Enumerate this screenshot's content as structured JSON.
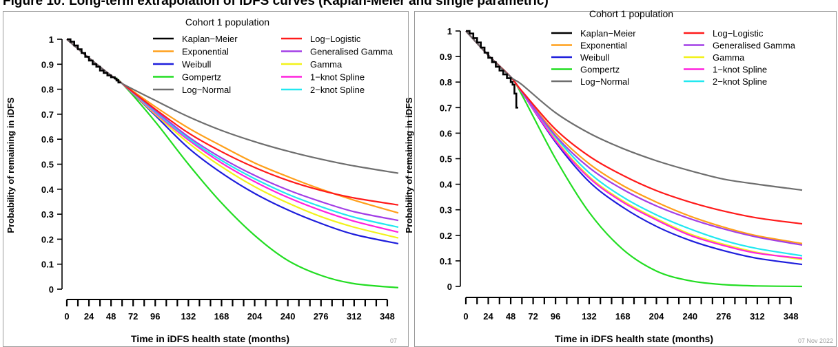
{
  "header": {
    "title": "Figure 10: Long-term extrapolation of iDFS curves (Kaplan-Meier and single parametric)"
  },
  "footer": {
    "date_stamp": "07 Nov 2022",
    "left_mark": "07"
  },
  "chart_data": [
    {
      "type": "line",
      "title": "Cohort 1 population",
      "xlabel": "Time in iDFS health state (months)",
      "ylabel": "Probability of remaining in iDFS",
      "xlim": [
        0,
        360
      ],
      "ylim": [
        0,
        1
      ],
      "x_ticks": [
        0,
        24,
        48,
        72,
        96,
        132,
        168,
        204,
        240,
        276,
        312,
        348
      ],
      "y_ticks": [
        0,
        0.1,
        0.2,
        0.3,
        0.4,
        0.5,
        0.6,
        0.7,
        0.8,
        0.9,
        1
      ],
      "legend_placement": "top",
      "kaplan_meier": {
        "name": "Kaplan−Meier",
        "color": "#000000",
        "x": [
          0,
          4,
          8,
          12,
          16,
          20,
          24,
          28,
          32,
          36,
          40,
          44,
          48,
          52,
          54,
          56,
          56,
          58
        ],
        "y": [
          1.0,
          0.99,
          0.975,
          0.96,
          0.945,
          0.93,
          0.915,
          0.9,
          0.89,
          0.875,
          0.865,
          0.855,
          0.848,
          0.843,
          0.835,
          0.84,
          0.827,
          0.825
        ]
      },
      "series": [
        {
          "name": "Exponential",
          "color": "#ff9f1a",
          "x": [
            0,
            24,
            48,
            60,
            96,
            132,
            168,
            204,
            240,
            276,
            312,
            360
          ],
          "y": [
            1.0,
            0.925,
            0.855,
            0.823,
            0.73,
            0.645,
            0.573,
            0.505,
            0.45,
            0.4,
            0.356,
            0.305
          ]
        },
        {
          "name": "Weibull",
          "color": "#1e1edc",
          "x": [
            0,
            24,
            48,
            60,
            96,
            132,
            168,
            204,
            240,
            276,
            312,
            360
          ],
          "y": [
            1.0,
            0.925,
            0.855,
            0.823,
            0.695,
            0.565,
            0.465,
            0.383,
            0.317,
            0.263,
            0.219,
            0.182
          ]
        },
        {
          "name": "Gompertz",
          "color": "#22dd22",
          "x": [
            0,
            24,
            48,
            60,
            96,
            132,
            168,
            204,
            240,
            276,
            312,
            360
          ],
          "y": [
            1.0,
            0.925,
            0.855,
            0.823,
            0.67,
            0.5,
            0.345,
            0.215,
            0.115,
            0.055,
            0.022,
            0.006
          ]
        },
        {
          "name": "Log−Normal",
          "color": "#6e6e6e",
          "x": [
            0,
            24,
            48,
            60,
            96,
            132,
            168,
            204,
            240,
            276,
            312,
            360
          ],
          "y": [
            1.0,
            0.925,
            0.855,
            0.823,
            0.755,
            0.69,
            0.635,
            0.59,
            0.552,
            0.52,
            0.493,
            0.464
          ]
        },
        {
          "name": "Log−Logistic",
          "color": "#ff1a1a",
          "x": [
            0,
            24,
            48,
            60,
            96,
            132,
            168,
            204,
            240,
            276,
            312,
            360
          ],
          "y": [
            1.0,
            0.925,
            0.855,
            0.823,
            0.72,
            0.625,
            0.55,
            0.487,
            0.435,
            0.395,
            0.365,
            0.337
          ]
        },
        {
          "name": "Generalised Gamma",
          "color": "#a23ee6",
          "x": [
            0,
            24,
            48,
            60,
            96,
            132,
            168,
            204,
            240,
            276,
            312,
            360
          ],
          "y": [
            1.0,
            0.925,
            0.855,
            0.823,
            0.715,
            0.61,
            0.525,
            0.455,
            0.397,
            0.35,
            0.31,
            0.275
          ]
        },
        {
          "name": "Gamma",
          "color": "#f2f21a",
          "x": [
            0,
            24,
            48,
            60,
            96,
            132,
            168,
            204,
            240,
            276,
            312,
            360
          ],
          "y": [
            1.0,
            0.925,
            0.855,
            0.823,
            0.7,
            0.585,
            0.49,
            0.41,
            0.345,
            0.29,
            0.248,
            0.205
          ]
        },
        {
          "name": "1−knot Spline",
          "color": "#ff22dd",
          "x": [
            0,
            24,
            48,
            60,
            96,
            132,
            168,
            204,
            240,
            276,
            312,
            360
          ],
          "y": [
            1.0,
            0.925,
            0.855,
            0.823,
            0.705,
            0.597,
            0.505,
            0.43,
            0.367,
            0.315,
            0.272,
            0.228
          ]
        },
        {
          "name": "2−knot Spline",
          "color": "#22e8f0",
          "x": [
            0,
            24,
            48,
            60,
            96,
            132,
            168,
            204,
            240,
            276,
            312,
            360
          ],
          "y": [
            1.0,
            0.925,
            0.855,
            0.823,
            0.71,
            0.603,
            0.515,
            0.442,
            0.38,
            0.33,
            0.288,
            0.248
          ]
        }
      ]
    },
    {
      "type": "line",
      "title": "Cohort 1 population",
      "xlabel": "Time in iDFS health state (months)",
      "ylabel": "Probability of remaining in iDFS",
      "xlim": [
        0,
        360
      ],
      "ylim": [
        0,
        1
      ],
      "x_ticks": [
        0,
        24,
        48,
        72,
        96,
        132,
        168,
        204,
        240,
        276,
        312,
        348
      ],
      "y_ticks": [
        0,
        0.1,
        0.2,
        0.3,
        0.4,
        0.5,
        0.6,
        0.7,
        0.8,
        0.9,
        1
      ],
      "legend_placement": "top",
      "kaplan_meier": {
        "name": "Kaplan−Meier",
        "color": "#000000",
        "x": [
          0,
          4,
          8,
          12,
          16,
          20,
          24,
          28,
          32,
          36,
          40,
          44,
          48,
          50,
          52,
          52,
          54,
          54,
          56
        ],
        "y": [
          1.0,
          0.99,
          0.972,
          0.955,
          0.935,
          0.915,
          0.895,
          0.878,
          0.86,
          0.845,
          0.83,
          0.815,
          0.8,
          0.79,
          0.775,
          0.755,
          0.75,
          0.7,
          0.7
        ]
      },
      "series": [
        {
          "name": "Exponential",
          "color": "#ff9f1a",
          "x": [
            0,
            24,
            48,
            60,
            96,
            132,
            168,
            204,
            240,
            276,
            312,
            360
          ],
          "y": [
            1.0,
            0.905,
            0.82,
            0.76,
            0.6,
            0.48,
            0.395,
            0.33,
            0.275,
            0.232,
            0.198,
            0.168
          ]
        },
        {
          "name": "Weibull",
          "color": "#1e1edc",
          "x": [
            0,
            24,
            48,
            60,
            96,
            132,
            168,
            204,
            240,
            276,
            312,
            360
          ],
          "y": [
            1.0,
            0.905,
            0.82,
            0.76,
            0.565,
            0.41,
            0.31,
            0.235,
            0.18,
            0.14,
            0.11,
            0.086
          ]
        },
        {
          "name": "Gompertz",
          "color": "#22dd22",
          "x": [
            0,
            24,
            48,
            60,
            96,
            132,
            168,
            204,
            240,
            276,
            312,
            360
          ],
          "y": [
            1.0,
            0.905,
            0.82,
            0.75,
            0.5,
            0.29,
            0.145,
            0.06,
            0.022,
            0.007,
            0.002,
            0.0
          ]
        },
        {
          "name": "Log−Normal",
          "color": "#6e6e6e",
          "x": [
            0,
            24,
            48,
            60,
            96,
            132,
            168,
            204,
            240,
            276,
            312,
            360
          ],
          "y": [
            1.0,
            0.905,
            0.82,
            0.79,
            0.68,
            0.6,
            0.54,
            0.492,
            0.453,
            0.42,
            0.4,
            0.377
          ]
        },
        {
          "name": "Log−Logistic",
          "color": "#ff1a1a",
          "x": [
            0,
            24,
            48,
            60,
            96,
            132,
            168,
            204,
            240,
            276,
            312,
            360
          ],
          "y": [
            1.0,
            0.905,
            0.82,
            0.765,
            0.615,
            0.51,
            0.435,
            0.375,
            0.33,
            0.295,
            0.268,
            0.245
          ]
        },
        {
          "name": "Generalised Gamma",
          "color": "#a23ee6",
          "x": [
            0,
            24,
            48,
            60,
            96,
            132,
            168,
            204,
            240,
            276,
            312,
            360
          ],
          "y": [
            1.0,
            0.905,
            0.82,
            0.762,
            0.59,
            0.465,
            0.38,
            0.315,
            0.265,
            0.225,
            0.193,
            0.162
          ]
        },
        {
          "name": "Gamma",
          "color": "#f2f21a",
          "x": [
            0,
            24,
            48,
            60,
            96,
            132,
            168,
            204,
            240,
            276,
            312,
            360
          ],
          "y": [
            1.0,
            0.905,
            0.82,
            0.76,
            0.575,
            0.43,
            0.335,
            0.265,
            0.205,
            0.165,
            0.133,
            0.105
          ]
        },
        {
          "name": "1−knot Spline",
          "color": "#ff22dd",
          "x": [
            0,
            24,
            48,
            60,
            96,
            132,
            168,
            204,
            240,
            276,
            312,
            360
          ],
          "y": [
            1.0,
            0.905,
            0.82,
            0.76,
            0.57,
            0.425,
            0.33,
            0.26,
            0.2,
            0.16,
            0.13,
            0.11
          ]
        },
        {
          "name": "2−knot Spline",
          "color": "#22e8f0",
          "x": [
            0,
            24,
            48,
            60,
            96,
            132,
            168,
            204,
            240,
            276,
            312,
            360
          ],
          "y": [
            1.0,
            0.905,
            0.82,
            0.762,
            0.585,
            0.445,
            0.35,
            0.28,
            0.225,
            0.18,
            0.148,
            0.12
          ]
        }
      ]
    }
  ]
}
